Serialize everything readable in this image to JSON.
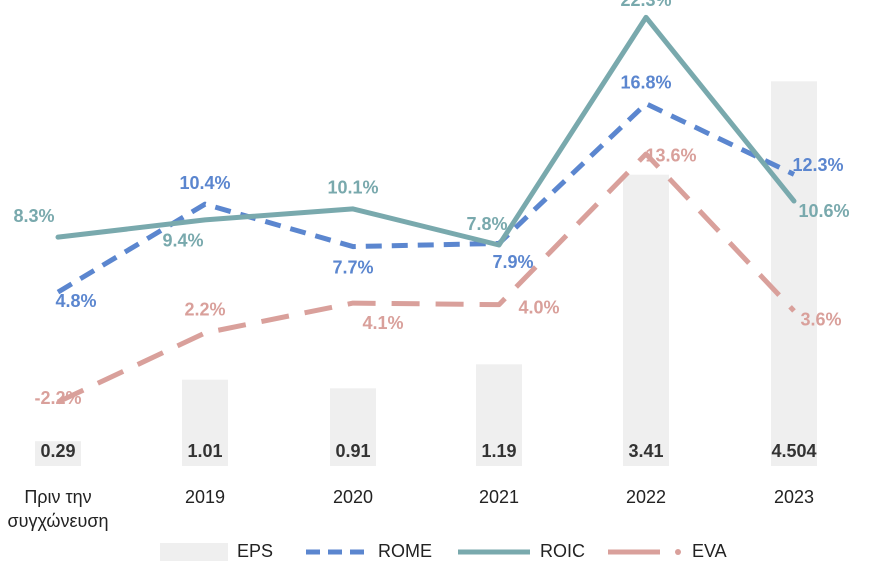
{
  "chart_data": {
    "type": "bar+line",
    "categories": [
      "Πριν την συγχώνευση",
      "2019",
      "2020",
      "2021",
      "2022",
      "2023"
    ],
    "category_lines": [
      [
        "Πριν την",
        "συγχώνευση"
      ],
      [
        "2019"
      ],
      [
        "2020"
      ],
      [
        "2021"
      ],
      [
        "2022"
      ],
      [
        "2023"
      ]
    ],
    "bars": {
      "name": "EPS",
      "values": [
        0.29,
        1.01,
        0.91,
        1.19,
        3.41,
        4.504
      ],
      "labels": [
        "0.29",
        "1.01",
        "0.91",
        "1.19",
        "3.41",
        "4.504"
      ],
      "color": "#efefef",
      "label_color": "#333333"
    },
    "series": [
      {
        "name": "ROME",
        "values": [
          4.8,
          10.4,
          7.7,
          7.9,
          16.8,
          12.3
        ],
        "labels": [
          "4.8%",
          "10.4%",
          "7.7%",
          "7.9%",
          "16.8%",
          "12.3%"
        ],
        "color": "#5b86cf",
        "style": "dashed"
      },
      {
        "name": "ROIC",
        "values": [
          8.3,
          9.4,
          10.1,
          7.8,
          22.3,
          10.6
        ],
        "labels": [
          "8.3%",
          "9.4%",
          "10.1%",
          "7.8%",
          "22.3%",
          "10.6%"
        ],
        "color": "#79a9ad",
        "style": "solid"
      },
      {
        "name": "EVA",
        "values": [
          -2.2,
          2.2,
          4.1,
          4.0,
          13.6,
          3.6
        ],
        "labels": [
          "-2.2%",
          "2.2%",
          "4.1%",
          "4.0%",
          "13.6%",
          "3.6%"
        ],
        "color": "#d9a09b",
        "style": "long-dash"
      }
    ],
    "legend": {
      "position": "bottom",
      "entries": [
        "EPS",
        "ROME",
        "ROIC",
        "EVA"
      ]
    },
    "grid": false,
    "axes_visible": false,
    "bar_ylim": [
      0,
      4.8
    ]
  }
}
